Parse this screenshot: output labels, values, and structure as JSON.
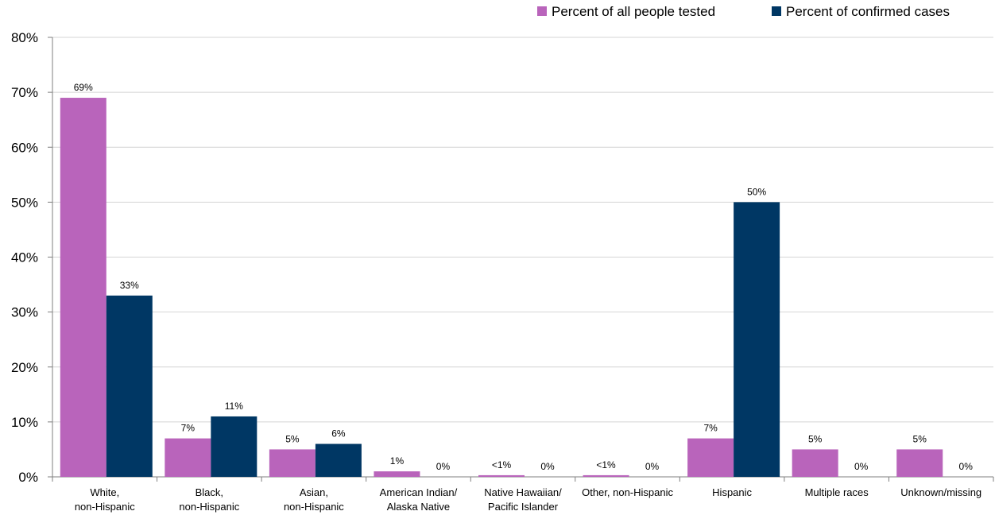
{
  "chart_data": {
    "type": "bar",
    "categories": [
      [
        "White,",
        "non-Hispanic"
      ],
      [
        "Black,",
        "non-Hispanic"
      ],
      [
        "Asian,",
        "non-Hispanic"
      ],
      [
        "American Indian/",
        "Alaska Native"
      ],
      [
        "Native Hawaiian/",
        "Pacific Islander"
      ],
      [
        "Other, non-Hispanic"
      ],
      [
        "Hispanic"
      ],
      [
        "Multiple races"
      ],
      [
        "Unknown/missing"
      ]
    ],
    "series": [
      {
        "name": "Percent of all people tested",
        "color": "#b964bb",
        "values": [
          69,
          7,
          5,
          1,
          0.3,
          0.3,
          7,
          5,
          5
        ],
        "labels": [
          "69%",
          "7%",
          "5%",
          "1%",
          "<1%",
          "<1%",
          "7%",
          "5%",
          "5%"
        ]
      },
      {
        "name": "Percent of confirmed cases",
        "color": "#003764",
        "values": [
          33,
          11,
          6,
          0,
          0,
          0,
          50,
          0,
          0
        ],
        "labels": [
          "33%",
          "11%",
          "6%",
          "0%",
          "0%",
          "0%",
          "50%",
          "0%",
          "0%"
        ]
      }
    ],
    "yticks": [
      "0%",
      "10%",
      "20%",
      "30%",
      "40%",
      "50%",
      "60%",
      "70%",
      "80%"
    ],
    "ylim": [
      0,
      80
    ],
    "grid": true,
    "legend_position": "top-right"
  }
}
